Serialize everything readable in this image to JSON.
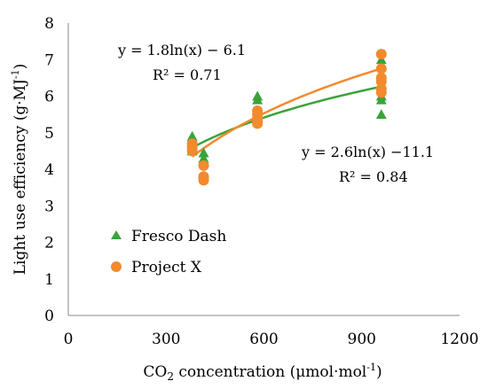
{
  "chart_data": {
    "type": "scatter",
    "xlabel": "CO2 concentration (μmol·mol-1)",
    "ylabel": "Light use efficiency (g·MJ-1)",
    "xlim": [
      0,
      1200
    ],
    "ylim": [
      0,
      8
    ],
    "x_ticks": [
      0,
      300,
      600,
      900,
      1200
    ],
    "y_ticks": [
      0,
      1,
      2,
      3,
      4,
      5,
      6,
      7,
      8
    ],
    "grid": false,
    "legend_position": "left",
    "series": [
      {
        "name": "Fresco Dash",
        "marker": "triangle",
        "color": "#3aa33a",
        "points": [
          [
            380,
            4.9
          ],
          [
            380,
            4.75
          ],
          [
            380,
            4.6
          ],
          [
            380,
            4.55
          ],
          [
            380,
            4.5
          ],
          [
            415,
            4.45
          ],
          [
            415,
            4.3
          ],
          [
            580,
            6.0
          ],
          [
            580,
            5.9
          ],
          [
            580,
            5.6
          ],
          [
            580,
            5.4
          ],
          [
            580,
            5.3
          ],
          [
            960,
            7.0
          ],
          [
            960,
            6.6
          ],
          [
            960,
            6.3
          ],
          [
            960,
            6.0
          ],
          [
            960,
            5.9
          ],
          [
            960,
            5.5
          ]
        ]
      },
      {
        "name": "Project X",
        "marker": "circle",
        "color": "#f28a2e",
        "points": [
          [
            380,
            4.7
          ],
          [
            380,
            4.6
          ],
          [
            380,
            4.5
          ],
          [
            415,
            4.1
          ],
          [
            415,
            3.8
          ],
          [
            415,
            3.75
          ],
          [
            415,
            3.7
          ],
          [
            580,
            5.6
          ],
          [
            580,
            5.5
          ],
          [
            580,
            5.4
          ],
          [
            580,
            5.3
          ],
          [
            580,
            5.25
          ],
          [
            960,
            7.15
          ],
          [
            960,
            6.75
          ],
          [
            960,
            6.5
          ],
          [
            960,
            6.4
          ],
          [
            960,
            6.2
          ],
          [
            960,
            6.1
          ]
        ]
      }
    ],
    "trendlines": [
      {
        "series": "Fresco Dash",
        "color": "#3aa33a",
        "a": 1.8,
        "b": -6.1,
        "x_range": [
          380,
          960
        ],
        "equation": "y = 1.8ln(x) − 6.1",
        "r2": "R² = 0.71"
      },
      {
        "series": "Project X",
        "color": "#f28a2e",
        "a": 2.6,
        "b": -11.1,
        "x_range": [
          380,
          960
        ],
        "equation": "y = 2.6ln(x) −11.1",
        "r2": "R² = 0.84"
      }
    ]
  }
}
